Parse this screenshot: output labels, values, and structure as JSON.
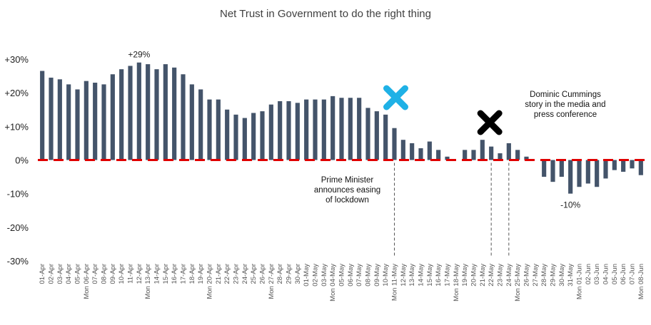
{
  "chart_data": {
    "type": "bar",
    "title": "Net Trust in Government to do the right thing",
    "xlabel": "",
    "ylabel": "",
    "ylim": [
      -30,
      30
    ],
    "yticks": [
      "+30%",
      "+20%",
      "+10%",
      "0%",
      "-10%",
      "-20%",
      "-30%"
    ],
    "ytick_values": [
      30,
      20,
      10,
      0,
      -10,
      -20,
      -30
    ],
    "grid": false,
    "legend": "none",
    "bar_color": "#44546a",
    "zero_line_color": "#e00000",
    "categories": [
      "01-Apr",
      "02-Apr",
      "03-Apr",
      "04-Apr",
      "05-Apr",
      "Mon 06-Apr",
      "07-Apr",
      "08-Apr",
      "09-Apr",
      "10-Apr",
      "11-Apr",
      "12-Apr",
      "Mon 13-Apr",
      "14-Apr",
      "15-Apr",
      "16-Apr",
      "17-Apr",
      "18-Apr",
      "19-Apr",
      "Mon 20-Apr",
      "21-Apr",
      "22-Apr",
      "23-Apr",
      "24-Apr",
      "25-Apr",
      "26-Apr",
      "Mon 27-Apr",
      "28-Apr",
      "29-Apr",
      "30-Apr",
      "01-May",
      "02-May",
      "03-May",
      "Mon 04-May",
      "05-May",
      "06-May",
      "07-May",
      "08-May",
      "09-May",
      "10-May",
      "Mon 11-May",
      "12-May",
      "13-May",
      "14-May",
      "15-May",
      "16-May",
      "17-May",
      "Mon 18-May",
      "19-May",
      "20-May",
      "21-May",
      "22-May",
      "23-May",
      "24-May",
      "Mon 25-May",
      "26-May",
      "27-May",
      "28-May",
      "29-May",
      "30-May",
      "31-May",
      "Mon 01-Jun",
      "02-Jun",
      "03-Jun",
      "04-Jun",
      "05-Jun",
      "06-Jun",
      "07-Jun",
      "Mon 08-Jun"
    ],
    "values": [
      26.5,
      24.5,
      24,
      22.5,
      21,
      23.5,
      23,
      22.5,
      25.5,
      27,
      28,
      29,
      28.5,
      27,
      28.5,
      27.5,
      25.5,
      22.5,
      21,
      18,
      18,
      15,
      13.5,
      12.5,
      14,
      14.5,
      16.5,
      17.5,
      17.5,
      17,
      18,
      18,
      18,
      19,
      18.5,
      18.5,
      18.5,
      15.5,
      14.5,
      13.5,
      9.5,
      6,
      5,
      3.5,
      5.5,
      3,
      1,
      0,
      3,
      3,
      6,
      4,
      2,
      5,
      3,
      1,
      0,
      -5,
      -6.5,
      -5,
      -10,
      -8,
      -7,
      -8,
      -5.5,
      -3,
      -3.5,
      -2.5,
      -4.5
    ],
    "data_labels": [
      {
        "category": "12-Apr",
        "text": "+29%"
      },
      {
        "category": "31-May",
        "text": "-10%"
      }
    ],
    "annotations": [
      {
        "category": "Mon 11-May",
        "text": [
          "Prime Minister",
          "announces easing",
          "of lockdown"
        ]
      },
      {
        "category": "22-May",
        "text": [
          "Dominic Cummings",
          "story in the media and",
          "press conference"
        ]
      }
    ],
    "event_markers": [
      {
        "category": "Mon 11-May",
        "color": "#1fb1e6",
        "symbol": "cross"
      },
      {
        "category": "22-May",
        "color": "#000000",
        "symbol": "cross"
      }
    ],
    "extra_dashed_lines": [
      "24-May"
    ]
  }
}
